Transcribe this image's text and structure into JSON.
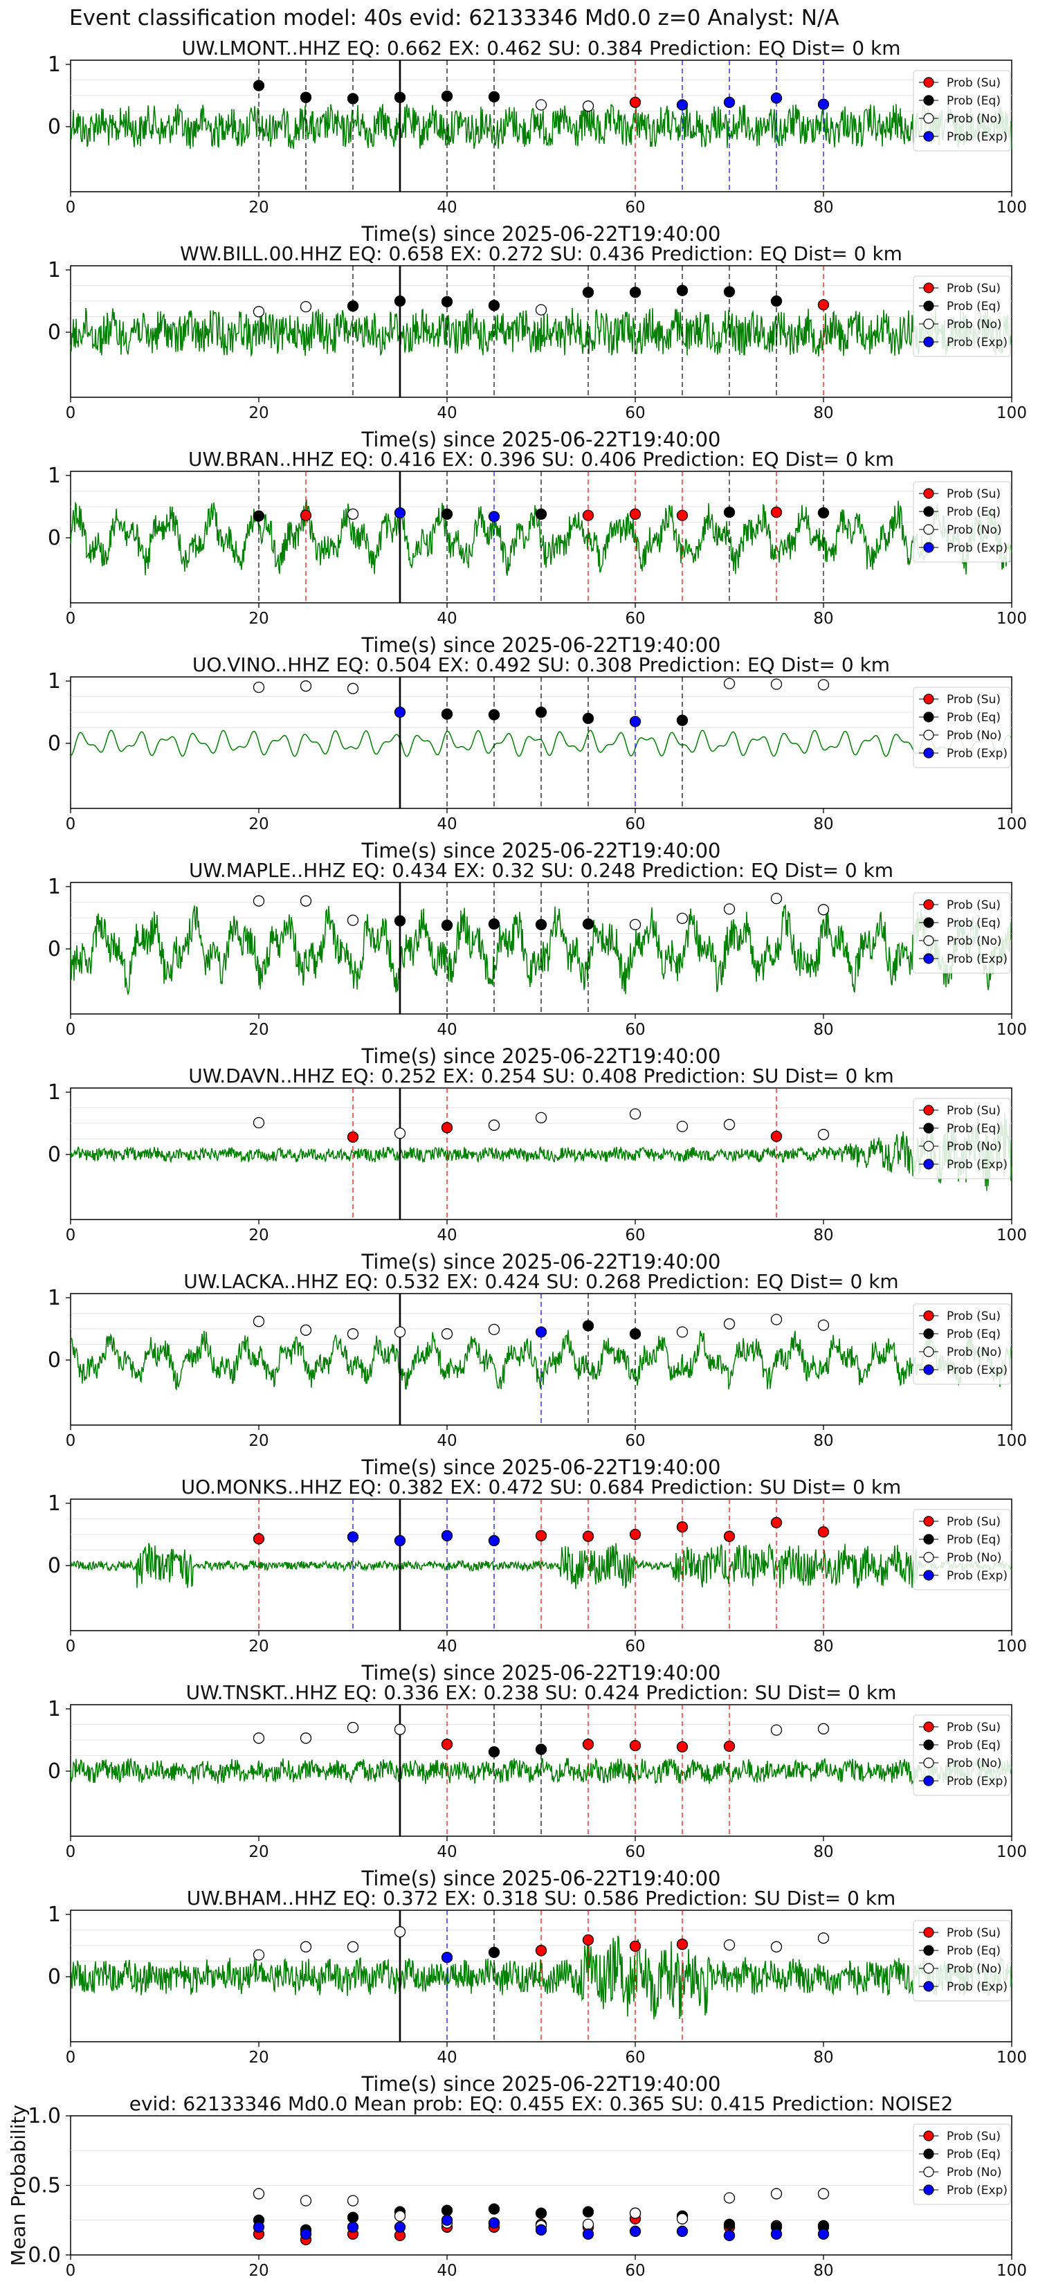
{
  "figure_title": "Event classification model: 40s evid: 62133346 Md0.0 z=0 Analyst: N/A",
  "xlabel": "Time(s) since 2025-06-22T19:40:00",
  "legend_labels": [
    "Prob (Su)",
    "Prob (Eq)",
    "Prob (No)",
    "Prob (Exp)"
  ],
  "colors": {
    "su": "#ff0000",
    "eq": "#000000",
    "no": "#ffffff",
    "exp": "#0000ff",
    "waveform": "#008000",
    "vline_origin": "#000000"
  },
  "chart_data": [
    {
      "type": "line",
      "title": "UW.LMONT..HHZ   EQ: 0.662  EX: 0.462  SU: 0.384   Prediction: EQ    Dist= 0 km",
      "xlim": [
        0,
        100
      ],
      "ylim_ticks": [
        0,
        1
      ],
      "xticks": [
        0,
        20,
        40,
        60,
        80,
        100
      ],
      "origin_time": 35,
      "amp": 0.35,
      "style": "noisy",
      "points": [
        {
          "x": 20,
          "y": 0.66,
          "cls": "eq"
        },
        {
          "x": 25,
          "y": 0.47,
          "cls": "eq"
        },
        {
          "x": 30,
          "y": 0.45,
          "cls": "eq"
        },
        {
          "x": 35,
          "y": 0.47,
          "cls": "eq"
        },
        {
          "x": 40,
          "y": 0.49,
          "cls": "eq"
        },
        {
          "x": 45,
          "y": 0.48,
          "cls": "eq"
        },
        {
          "x": 50,
          "y": 0.35,
          "cls": "no"
        },
        {
          "x": 55,
          "y": 0.33,
          "cls": "no"
        },
        {
          "x": 60,
          "y": 0.39,
          "cls": "su"
        },
        {
          "x": 65,
          "y": 0.35,
          "cls": "exp"
        },
        {
          "x": 70,
          "y": 0.39,
          "cls": "exp"
        },
        {
          "x": 75,
          "y": 0.46,
          "cls": "exp"
        },
        {
          "x": 80,
          "y": 0.36,
          "cls": "exp"
        }
      ]
    },
    {
      "type": "line",
      "title": "WW.BILL.00.HHZ   EQ: 0.658  EX: 0.272  SU: 0.436   Prediction: EQ    Dist= 0 km",
      "xlim": [
        0,
        100
      ],
      "ylim_ticks": [
        0,
        1
      ],
      "xticks": [
        0,
        20,
        40,
        60,
        80,
        100
      ],
      "origin_time": 35,
      "amp": 0.38,
      "style": "noisy",
      "points": [
        {
          "x": 20,
          "y": 0.33,
          "cls": "no"
        },
        {
          "x": 25,
          "y": 0.41,
          "cls": "no"
        },
        {
          "x": 30,
          "y": 0.42,
          "cls": "eq"
        },
        {
          "x": 35,
          "y": 0.5,
          "cls": "eq"
        },
        {
          "x": 40,
          "y": 0.49,
          "cls": "eq"
        },
        {
          "x": 45,
          "y": 0.43,
          "cls": "eq"
        },
        {
          "x": 50,
          "y": 0.36,
          "cls": "no"
        },
        {
          "x": 55,
          "y": 0.64,
          "cls": "eq"
        },
        {
          "x": 60,
          "y": 0.64,
          "cls": "eq"
        },
        {
          "x": 65,
          "y": 0.67,
          "cls": "eq"
        },
        {
          "x": 70,
          "y": 0.65,
          "cls": "eq"
        },
        {
          "x": 75,
          "y": 0.5,
          "cls": "eq"
        },
        {
          "x": 80,
          "y": 0.44,
          "cls": "su"
        }
      ]
    },
    {
      "type": "line",
      "title": "UW.BRAN..HHZ   EQ: 0.416  EX: 0.396  SU: 0.406   Prediction: EQ    Dist= 0 km",
      "xlim": [
        0,
        100
      ],
      "ylim_ticks": [
        0,
        1
      ],
      "xticks": [
        0,
        20,
        40,
        60,
        80,
        100
      ],
      "origin_time": 35,
      "amp": 0.5,
      "style": "wavy",
      "points": [
        {
          "x": 20,
          "y": 0.35,
          "cls": "eq"
        },
        {
          "x": 25,
          "y": 0.36,
          "cls": "su"
        },
        {
          "x": 30,
          "y": 0.38,
          "cls": "no"
        },
        {
          "x": 35,
          "y": 0.4,
          "cls": "exp"
        },
        {
          "x": 40,
          "y": 0.38,
          "cls": "eq"
        },
        {
          "x": 45,
          "y": 0.34,
          "cls": "exp"
        },
        {
          "x": 50,
          "y": 0.38,
          "cls": "eq"
        },
        {
          "x": 55,
          "y": 0.36,
          "cls": "su"
        },
        {
          "x": 60,
          "y": 0.38,
          "cls": "su"
        },
        {
          "x": 65,
          "y": 0.36,
          "cls": "su"
        },
        {
          "x": 70,
          "y": 0.41,
          "cls": "eq"
        },
        {
          "x": 75,
          "y": 0.41,
          "cls": "su"
        },
        {
          "x": 80,
          "y": 0.4,
          "cls": "eq"
        }
      ]
    },
    {
      "type": "line",
      "title": "UO.VINO..HHZ   EQ: 0.504  EX: 0.492  SU: 0.308   Prediction: EQ    Dist= 0 km",
      "xlim": [
        0,
        100
      ],
      "ylim_ticks": [
        0,
        1
      ],
      "xticks": [
        0,
        20,
        40,
        60,
        80,
        100
      ],
      "origin_time": 35,
      "amp": 0.22,
      "style": "smooth",
      "points": [
        {
          "x": 20,
          "y": 0.9,
          "cls": "no"
        },
        {
          "x": 25,
          "y": 0.92,
          "cls": "no"
        },
        {
          "x": 30,
          "y": 0.88,
          "cls": "no"
        },
        {
          "x": 35,
          "y": 0.5,
          "cls": "exp"
        },
        {
          "x": 40,
          "y": 0.47,
          "cls": "eq"
        },
        {
          "x": 45,
          "y": 0.46,
          "cls": "eq"
        },
        {
          "x": 50,
          "y": 0.5,
          "cls": "eq"
        },
        {
          "x": 55,
          "y": 0.4,
          "cls": "eq"
        },
        {
          "x": 60,
          "y": 0.35,
          "cls": "exp"
        },
        {
          "x": 65,
          "y": 0.37,
          "cls": "eq"
        },
        {
          "x": 70,
          "y": 0.96,
          "cls": "no"
        },
        {
          "x": 75,
          "y": 0.95,
          "cls": "no"
        },
        {
          "x": 80,
          "y": 0.94,
          "cls": "no"
        }
      ]
    },
    {
      "type": "line",
      "title": "UW.MAPLE..HHZ   EQ: 0.434  EX: 0.32  SU: 0.248   Prediction: EQ    Dist= 0 km",
      "xlim": [
        0,
        100
      ],
      "ylim_ticks": [
        0,
        1
      ],
      "xticks": [
        0,
        20,
        40,
        60,
        80,
        100
      ],
      "origin_time": 35,
      "amp": 0.6,
      "style": "wavy",
      "points": [
        {
          "x": 20,
          "y": 0.77,
          "cls": "no"
        },
        {
          "x": 25,
          "y": 0.77,
          "cls": "no"
        },
        {
          "x": 30,
          "y": 0.46,
          "cls": "no"
        },
        {
          "x": 35,
          "y": 0.45,
          "cls": "eq"
        },
        {
          "x": 40,
          "y": 0.38,
          "cls": "eq"
        },
        {
          "x": 45,
          "y": 0.4,
          "cls": "eq"
        },
        {
          "x": 50,
          "y": 0.39,
          "cls": "eq"
        },
        {
          "x": 55,
          "y": 0.4,
          "cls": "eq"
        },
        {
          "x": 60,
          "y": 0.39,
          "cls": "no"
        },
        {
          "x": 65,
          "y": 0.49,
          "cls": "no"
        },
        {
          "x": 70,
          "y": 0.64,
          "cls": "no"
        },
        {
          "x": 75,
          "y": 0.81,
          "cls": "no"
        },
        {
          "x": 80,
          "y": 0.63,
          "cls": "no"
        }
      ]
    },
    {
      "type": "line",
      "title": "UW.DAVN..HHZ   EQ: 0.252  EX: 0.254  SU: 0.408   Prediction: SU    Dist= 0 km",
      "xlim": [
        0,
        100
      ],
      "ylim_ticks": [
        0,
        1
      ],
      "xticks": [
        0,
        20,
        40,
        60,
        80,
        100
      ],
      "origin_time": 35,
      "amp": 0.12,
      "style": "burst_end",
      "points": [
        {
          "x": 20,
          "y": 0.51,
          "cls": "no"
        },
        {
          "x": 30,
          "y": 0.28,
          "cls": "su"
        },
        {
          "x": 35,
          "y": 0.34,
          "cls": "no"
        },
        {
          "x": 40,
          "y": 0.43,
          "cls": "su"
        },
        {
          "x": 45,
          "y": 0.47,
          "cls": "no"
        },
        {
          "x": 50,
          "y": 0.59,
          "cls": "no"
        },
        {
          "x": 60,
          "y": 0.65,
          "cls": "no"
        },
        {
          "x": 65,
          "y": 0.45,
          "cls": "no"
        },
        {
          "x": 70,
          "y": 0.48,
          "cls": "no"
        },
        {
          "x": 75,
          "y": 0.29,
          "cls": "su"
        },
        {
          "x": 80,
          "y": 0.32,
          "cls": "no"
        }
      ]
    },
    {
      "type": "line",
      "title": "UW.LACKA..HHZ   EQ: 0.532  EX: 0.424  SU: 0.268   Prediction: EQ    Dist= 0 km",
      "xlim": [
        0,
        100
      ],
      "ylim_ticks": [
        0,
        1
      ],
      "xticks": [
        0,
        20,
        40,
        60,
        80,
        100
      ],
      "origin_time": 35,
      "amp": 0.4,
      "style": "wavy",
      "points": [
        {
          "x": 20,
          "y": 0.62,
          "cls": "no"
        },
        {
          "x": 25,
          "y": 0.48,
          "cls": "no"
        },
        {
          "x": 30,
          "y": 0.42,
          "cls": "no"
        },
        {
          "x": 35,
          "y": 0.45,
          "cls": "no"
        },
        {
          "x": 40,
          "y": 0.42,
          "cls": "no"
        },
        {
          "x": 45,
          "y": 0.49,
          "cls": "no"
        },
        {
          "x": 50,
          "y": 0.45,
          "cls": "exp"
        },
        {
          "x": 55,
          "y": 0.55,
          "cls": "eq"
        },
        {
          "x": 60,
          "y": 0.42,
          "cls": "eq"
        },
        {
          "x": 65,
          "y": 0.45,
          "cls": "no"
        },
        {
          "x": 70,
          "y": 0.58,
          "cls": "no"
        },
        {
          "x": 75,
          "y": 0.65,
          "cls": "no"
        },
        {
          "x": 80,
          "y": 0.56,
          "cls": "no"
        }
      ]
    },
    {
      "type": "line",
      "title": "UO.MONKS..HHZ   EQ: 0.382  EX: 0.472  SU: 0.684   Prediction: SU    Dist= 0 km",
      "xlim": [
        0,
        100
      ],
      "ylim_ticks": [
        0,
        1
      ],
      "xticks": [
        0,
        20,
        40,
        60,
        80,
        100
      ],
      "origin_time": 35,
      "amp": 0.08,
      "style": "bursts",
      "points": [
        {
          "x": 20,
          "y": 0.43,
          "cls": "su"
        },
        {
          "x": 30,
          "y": 0.46,
          "cls": "exp"
        },
        {
          "x": 35,
          "y": 0.4,
          "cls": "exp"
        },
        {
          "x": 40,
          "y": 0.48,
          "cls": "exp"
        },
        {
          "x": 45,
          "y": 0.4,
          "cls": "exp"
        },
        {
          "x": 50,
          "y": 0.48,
          "cls": "su"
        },
        {
          "x": 55,
          "y": 0.47,
          "cls": "su"
        },
        {
          "x": 60,
          "y": 0.5,
          "cls": "su"
        },
        {
          "x": 65,
          "y": 0.62,
          "cls": "su"
        },
        {
          "x": 70,
          "y": 0.47,
          "cls": "su"
        },
        {
          "x": 75,
          "y": 0.69,
          "cls": "su"
        },
        {
          "x": 80,
          "y": 0.54,
          "cls": "su"
        }
      ]
    },
    {
      "type": "line",
      "title": "UW.TNSKT..HHZ   EQ: 0.336  EX: 0.238  SU: 0.424   Prediction: SU    Dist= 0 km",
      "xlim": [
        0,
        100
      ],
      "ylim_ticks": [
        0,
        1
      ],
      "xticks": [
        0,
        20,
        40,
        60,
        80,
        100
      ],
      "origin_time": 35,
      "amp": 0.2,
      "style": "noisy",
      "points": [
        {
          "x": 20,
          "y": 0.53,
          "cls": "no"
        },
        {
          "x": 25,
          "y": 0.53,
          "cls": "no"
        },
        {
          "x": 30,
          "y": 0.7,
          "cls": "no"
        },
        {
          "x": 35,
          "y": 0.67,
          "cls": "no"
        },
        {
          "x": 40,
          "y": 0.43,
          "cls": "su"
        },
        {
          "x": 45,
          "y": 0.31,
          "cls": "eq"
        },
        {
          "x": 50,
          "y": 0.35,
          "cls": "eq"
        },
        {
          "x": 55,
          "y": 0.43,
          "cls": "su"
        },
        {
          "x": 60,
          "y": 0.41,
          "cls": "su"
        },
        {
          "x": 65,
          "y": 0.39,
          "cls": "su"
        },
        {
          "x": 70,
          "y": 0.4,
          "cls": "su"
        },
        {
          "x": 75,
          "y": 0.66,
          "cls": "no"
        },
        {
          "x": 80,
          "y": 0.68,
          "cls": "no"
        }
      ]
    },
    {
      "type": "line",
      "title": "UW.BHAM..HHZ   EQ: 0.372  EX: 0.318  SU: 0.586   Prediction: SU    Dist= 0 km",
      "xlim": [
        0,
        100
      ],
      "ylim_ticks": [
        0,
        1
      ],
      "xticks": [
        0,
        20,
        40,
        60,
        80,
        100
      ],
      "origin_time": 35,
      "amp": 0.3,
      "style": "burst_mid",
      "points": [
        {
          "x": 20,
          "y": 0.35,
          "cls": "no"
        },
        {
          "x": 25,
          "y": 0.48,
          "cls": "no"
        },
        {
          "x": 30,
          "y": 0.48,
          "cls": "no"
        },
        {
          "x": 35,
          "y": 0.72,
          "cls": "no"
        },
        {
          "x": 40,
          "y": 0.31,
          "cls": "exp"
        },
        {
          "x": 45,
          "y": 0.39,
          "cls": "eq"
        },
        {
          "x": 50,
          "y": 0.42,
          "cls": "su"
        },
        {
          "x": 55,
          "y": 0.59,
          "cls": "su"
        },
        {
          "x": 60,
          "y": 0.49,
          "cls": "su"
        },
        {
          "x": 65,
          "y": 0.52,
          "cls": "su"
        },
        {
          "x": 70,
          "y": 0.51,
          "cls": "no"
        },
        {
          "x": 75,
          "y": 0.48,
          "cls": "no"
        },
        {
          "x": 80,
          "y": 0.62,
          "cls": "no"
        }
      ]
    },
    {
      "type": "scatter",
      "title": "evid: 62133346  Md0.0   Mean prob:   EQ: 0.455  EX: 0.365  SU: 0.415   Prediction: NOISE2",
      "ylabel": "Mean Probability",
      "xlim": [
        0,
        100
      ],
      "ylim": [
        0,
        1
      ],
      "xticks": [
        0,
        20,
        40,
        60,
        80,
        100
      ],
      "yticks": [
        "0.0",
        "0.5",
        "1.0"
      ],
      "series": [
        {
          "name": "Prob (Su)",
          "cls": "su",
          "x": [
            20,
            25,
            30,
            35,
            40,
            45,
            50,
            55,
            60,
            65,
            70,
            75,
            80
          ],
          "y": [
            0.15,
            0.11,
            0.15,
            0.14,
            0.2,
            0.2,
            0.22,
            0.2,
            0.26,
            0.26,
            0.2,
            0.21,
            0.2
          ]
        },
        {
          "name": "Prob (Eq)",
          "cls": "eq",
          "x": [
            20,
            25,
            30,
            35,
            40,
            45,
            50,
            55,
            60,
            65,
            70,
            75,
            80
          ],
          "y": [
            0.25,
            0.18,
            0.27,
            0.31,
            0.32,
            0.33,
            0.3,
            0.31,
            0.3,
            0.28,
            0.22,
            0.2,
            0.21
          ]
        },
        {
          "name": "Prob (No)",
          "cls": "no",
          "x": [
            20,
            25,
            30,
            35,
            40,
            45,
            50,
            55,
            60,
            65,
            70,
            75,
            80
          ],
          "y": [
            0.44,
            0.39,
            0.39,
            0.28,
            0.23,
            0.23,
            0.21,
            0.22,
            0.3,
            0.26,
            0.41,
            0.44,
            0.44
          ]
        },
        {
          "name": "Prob (Exp)",
          "cls": "exp",
          "x": [
            20,
            25,
            30,
            35,
            40,
            45,
            50,
            55,
            60,
            65,
            70,
            75,
            80
          ],
          "y": [
            0.2,
            0.15,
            0.2,
            0.2,
            0.25,
            0.23,
            0.18,
            0.15,
            0.17,
            0.17,
            0.14,
            0.15,
            0.15
          ]
        }
      ]
    }
  ]
}
